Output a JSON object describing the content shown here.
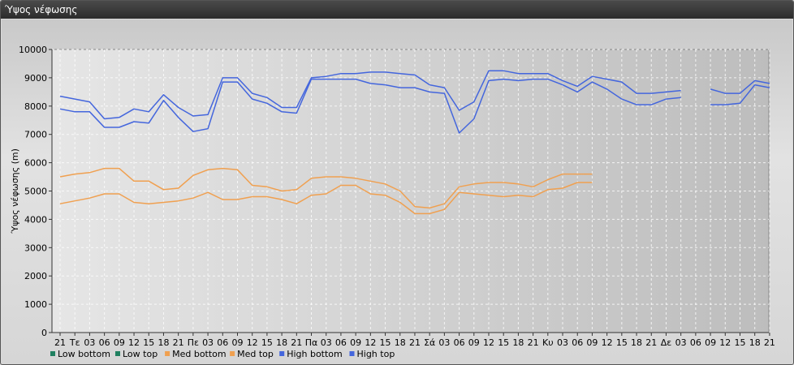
{
  "window": {
    "title": "Ύψος νέφωσης"
  },
  "colors": {
    "low": "#208060",
    "med": "#f0a050",
    "high": "#4466dd",
    "plot_bg_light": "#e6e6e6",
    "plot_bg_dark": "#bdbdbd",
    "grid": "#ffffff"
  },
  "chart_data": {
    "type": "line",
    "ylabel": "Ύψος νέφωσης (m)",
    "ylim": [
      0,
      10000
    ],
    "y_ticks": [
      0,
      1000,
      2000,
      3000,
      4000,
      5000,
      6000,
      7000,
      8000,
      9000,
      10000
    ],
    "x_labels": [
      "21",
      "Τε",
      "03",
      "06",
      "09",
      "12",
      "15",
      "18",
      "21",
      "Πε",
      "03",
      "06",
      "09",
      "12",
      "15",
      "18",
      "21",
      "Πα",
      "03",
      "06",
      "09",
      "12",
      "15",
      "18",
      "21",
      "Σά",
      "03",
      "06",
      "09",
      "12",
      "15",
      "18",
      "21",
      "Κυ",
      "03",
      "06",
      "09",
      "12",
      "15",
      "18",
      "21",
      "Δε",
      "03",
      "06",
      "09",
      "12",
      "15",
      "18",
      "21"
    ],
    "grid": true,
    "legend": "bottom-left",
    "series": [
      {
        "name": "Low bottom",
        "color_key": "low",
        "values": []
      },
      {
        "name": "Low top",
        "color_key": "low",
        "values": []
      },
      {
        "name": "Med bottom",
        "color_key": "med",
        "values": [
          4550,
          4650,
          4750,
          4900,
          4900,
          4600,
          4550,
          4600,
          4650,
          4750,
          4950,
          4700,
          4700,
          4800,
          4800,
          4700,
          4550,
          4850,
          4900,
          5200,
          5200,
          4900,
          4850,
          4600,
          4200,
          4200,
          4350,
          4950,
          4900,
          4850,
          4800,
          4850,
          4800,
          5050,
          5100,
          5300,
          5300,
          null,
          null,
          null,
          null,
          null,
          null,
          null,
          null,
          null,
          null,
          null,
          null
        ]
      },
      {
        "name": "Med top",
        "color_key": "med",
        "values": [
          5500,
          5600,
          5650,
          5800,
          5800,
          5350,
          5350,
          5050,
          5100,
          5550,
          5750,
          5800,
          5750,
          5200,
          5150,
          5000,
          5050,
          5450,
          5500,
          5500,
          5450,
          5350,
          5250,
          5000,
          4450,
          4400,
          4550,
          5150,
          5250,
          5300,
          5300,
          5250,
          5150,
          5400,
          5600,
          5600,
          5600,
          null,
          null,
          null,
          null,
          null,
          null,
          null,
          null,
          null,
          null,
          null,
          null
        ]
      },
      {
        "name": "High bottom",
        "color_key": "high",
        "values": [
          7900,
          7800,
          7800,
          7250,
          7250,
          7450,
          7400,
          8200,
          7600,
          7100,
          7200,
          8850,
          8850,
          8250,
          8100,
          7800,
          7750,
          8950,
          8950,
          8950,
          8950,
          8800,
          8750,
          8650,
          8650,
          8500,
          8450,
          7050,
          7550,
          8900,
          8950,
          8900,
          8950,
          8950,
          8750,
          8500,
          8850,
          8600,
          8250,
          8050,
          8050,
          8250,
          8300,
          null,
          8050,
          8050,
          8100,
          8750,
          8650
        ]
      },
      {
        "name": "High top",
        "color_key": "high",
        "values": [
          8350,
          8250,
          8150,
          7550,
          7600,
          7900,
          7800,
          8400,
          7950,
          7650,
          7700,
          9000,
          9000,
          8450,
          8300,
          7950,
          7950,
          9000,
          9050,
          9150,
          9150,
          9200,
          9200,
          9150,
          9100,
          8750,
          8650,
          7850,
          8150,
          9250,
          9250,
          9150,
          9150,
          9150,
          8900,
          8700,
          9050,
          8950,
          8850,
          8450,
          8450,
          8500,
          8550,
          null,
          8600,
          8450,
          8450,
          8900,
          8800
        ]
      }
    ]
  }
}
